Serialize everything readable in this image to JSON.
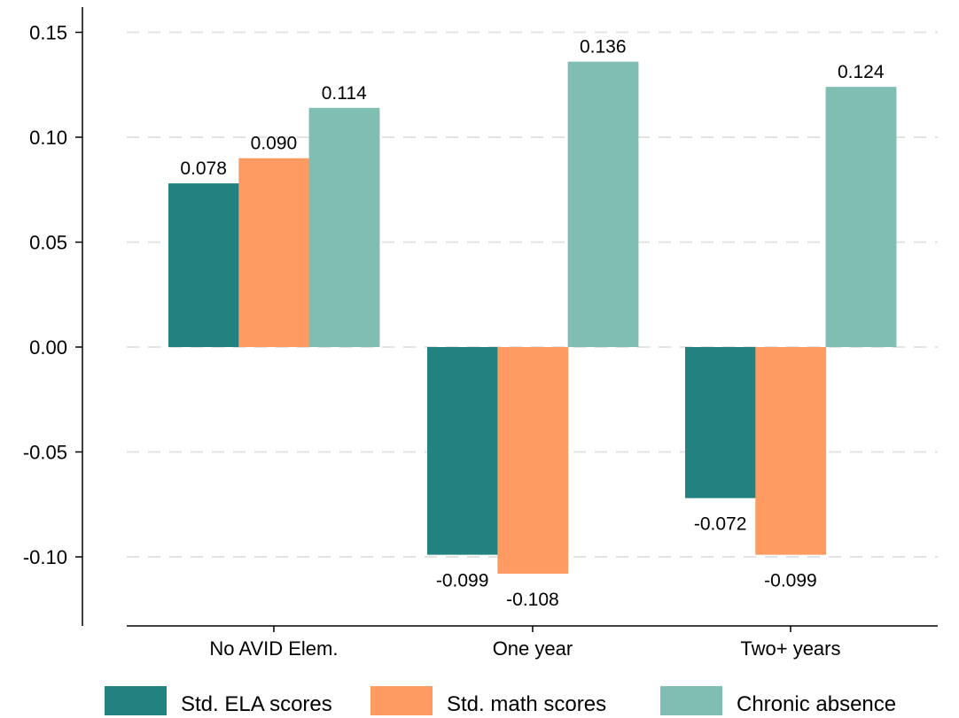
{
  "chart_data": {
    "type": "bar",
    "title": "",
    "xlabel": "",
    "ylabel": "",
    "categories": [
      "No AVID Elem.",
      "One year",
      "Two+ years"
    ],
    "series": [
      {
        "name": "Std. ELA scores",
        "color": "#21827f",
        "values": [
          0.078,
          -0.099,
          -0.072
        ],
        "labels": [
          "0.078",
          "-0.099",
          "-0.072"
        ]
      },
      {
        "name": "Std. math scores",
        "color": "#fd9b62",
        "values": [
          0.09,
          -0.108,
          -0.099
        ],
        "labels": [
          "0.090",
          "-0.108",
          "-0.099"
        ]
      },
      {
        "name": "Chronic absence",
        "color": "#80beb3",
        "values": [
          0.114,
          0.136,
          0.124
        ],
        "labels": [
          "0.114",
          "0.136",
          "0.124"
        ]
      }
    ],
    "ylim": [
      -0.125,
      0.16
    ],
    "yticks": [
      0.15,
      0.1,
      0.05,
      0.0,
      -0.05,
      -0.1
    ],
    "ytick_labels": [
      "0.15",
      "0.10",
      "0.05",
      "0.00",
      "-0.05",
      "-0.10"
    ],
    "grid": true,
    "legend_position": "bottom"
  }
}
